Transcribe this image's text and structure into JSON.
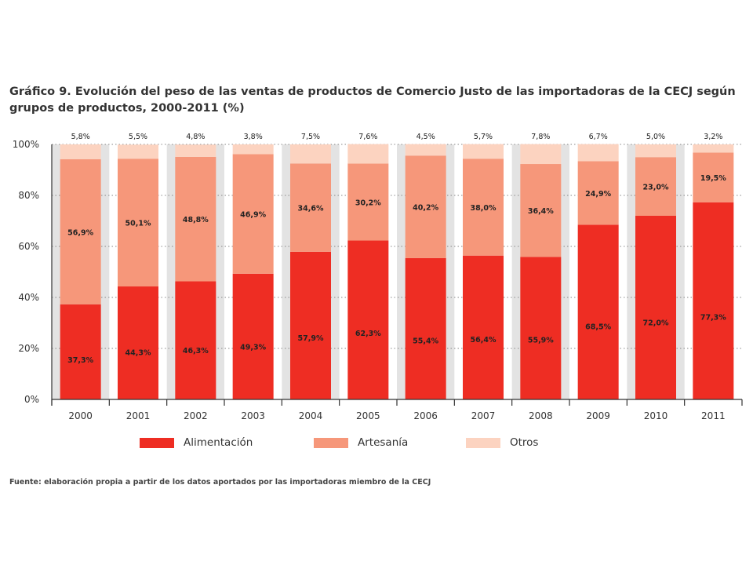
{
  "title": "Gráfico 9. Evolución del peso de las ventas de productos de Comercio Justo de las importadoras de la CECJ según grupos de productos, 2000-2011 (%)",
  "source": "Fuente: elaboración propia a partir de los datos aportados por las importadoras miembro de la CECJ",
  "colors": {
    "alimentacion": "#ee2d23",
    "artesania": "#f6977a",
    "otros": "#fcd3c0",
    "band": "#e3e3e3"
  },
  "chart_data": {
    "type": "bar",
    "stacked": true,
    "categories": [
      "2000",
      "2001",
      "2002",
      "2003",
      "2004",
      "2005",
      "2006",
      "2007",
      "2008",
      "2009",
      "2010",
      "2011"
    ],
    "series": [
      {
        "name": "Alimentación",
        "values": [
          37.3,
          44.3,
          46.3,
          49.3,
          57.9,
          62.3,
          55.4,
          56.4,
          55.9,
          68.5,
          72.0,
          77.3
        ],
        "labels": [
          "37,3%",
          "44,3%",
          "46,3%",
          "49,3%",
          "57,9%",
          "62,3%",
          "55,4%",
          "56,4%",
          "55,9%",
          "68,5%",
          "72,0%",
          "77,3%"
        ]
      },
      {
        "name": "Artesanía",
        "values": [
          56.9,
          50.1,
          48.8,
          46.9,
          34.6,
          30.2,
          40.2,
          38.0,
          36.4,
          24.9,
          23.0,
          19.5
        ],
        "labels": [
          "56,9%",
          "50,1%",
          "48,8%",
          "46,9%",
          "34,6%",
          "30,2%",
          "40,2%",
          "38,0%",
          "36,4%",
          "24,9%",
          "23,0%",
          "19,5%"
        ]
      },
      {
        "name": "Otros",
        "values": [
          5.8,
          5.5,
          4.8,
          3.8,
          7.5,
          7.6,
          4.5,
          5.7,
          7.8,
          6.7,
          5.0,
          3.2
        ],
        "labels": [
          "5,8%",
          "5,5%",
          "4,8%",
          "3,8%",
          "7,5%",
          "7,6%",
          "4,5%",
          "5,7%",
          "7,8%",
          "6,7%",
          "5,0%",
          "3,2%"
        ]
      }
    ],
    "yticks": [
      "0%",
      "20%",
      "40%",
      "60%",
      "80%",
      "100%"
    ],
    "ylim": [
      0,
      100
    ],
    "grid": true,
    "legend": "bottom"
  }
}
